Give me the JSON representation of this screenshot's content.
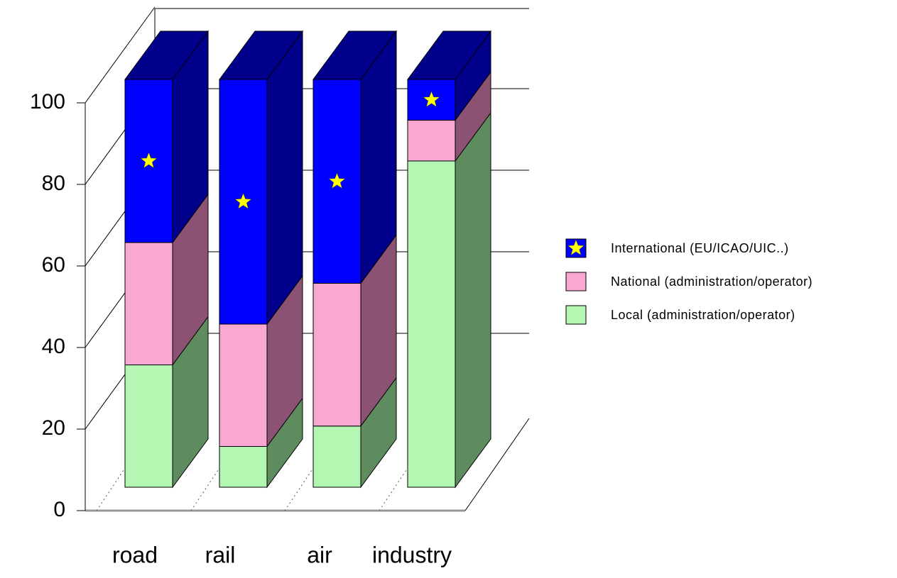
{
  "chart_data": {
    "type": "bar",
    "stacked": true,
    "categories": [
      "road",
      "rail",
      "air",
      "industry"
    ],
    "series": [
      {
        "name": "Local (administration/operator)",
        "color": "#b3f7b3",
        "side_color": "#5e8c5e",
        "values": [
          30,
          10,
          15,
          80
        ]
      },
      {
        "name": "National (administration/operator)",
        "color": "#f9a8d4",
        "side_color": "#8c5273",
        "values": [
          30,
          30,
          35,
          10
        ]
      },
      {
        "name": "International (EU/ICAO/UIC..)",
        "color": "#0000ff",
        "side_color": "#00008b",
        "values": [
          40,
          60,
          50,
          10
        ]
      }
    ],
    "ylim": [
      0,
      100
    ],
    "yticks": [
      0,
      20,
      40,
      60,
      80,
      100
    ],
    "grid": true
  }
}
